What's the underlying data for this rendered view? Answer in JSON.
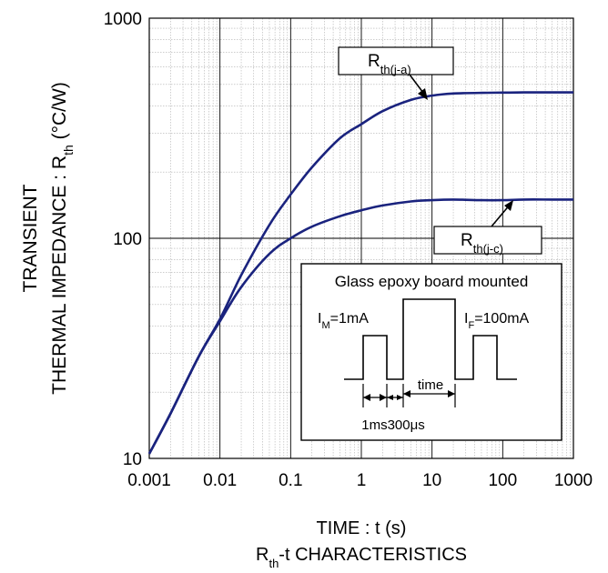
{
  "chart_data": {
    "type": "line",
    "x_scale": "log",
    "y_scale": "log",
    "xlim": [
      0.001,
      1000
    ],
    "ylim": [
      10,
      1000
    ],
    "grid": true,
    "x_ticks": [
      "0.001",
      "0.01",
      "0.1",
      "1",
      "10",
      "100",
      "1000"
    ],
    "y_ticks": [
      "10",
      "100",
      "1000"
    ],
    "xlabel": "TIME : t (s)",
    "ylabel_line1": "TRANSIENT",
    "ylabel_line2": {
      "main": "THERMAL IMPEDANCE : R",
      "sub": "th",
      "tail": " (°C/W)"
    },
    "caption": {
      "main": "R",
      "sub": "th",
      "tail": "-t CHARACTERISTICS"
    },
    "series": [
      {
        "name": {
          "main": "R",
          "sub": "th(j-a)"
        },
        "x": [
          0.001,
          0.002,
          0.005,
          0.01,
          0.02,
          0.05,
          0.1,
          0.2,
          0.5,
          1,
          2,
          5,
          10,
          20,
          50,
          100,
          200,
          500,
          1000
        ],
        "y": [
          10.5,
          16,
          29,
          43,
          68,
          115,
          158,
          210,
          285,
          330,
          378,
          425,
          445,
          455,
          458,
          459,
          460,
          460,
          460
        ]
      },
      {
        "name": {
          "main": "R",
          "sub": "th(j-c)"
        },
        "x": [
          0.001,
          0.002,
          0.005,
          0.01,
          0.02,
          0.05,
          0.1,
          0.2,
          0.5,
          1,
          2,
          5,
          10,
          20,
          50,
          100,
          200,
          500,
          1000
        ],
        "y": [
          10.5,
          16,
          29,
          42,
          60,
          85,
          100,
          113,
          126,
          134,
          141,
          147,
          149,
          150,
          149,
          149,
          150,
          150,
          150
        ]
      }
    ],
    "inset": {
      "title": "Glass epoxy board mounted",
      "im_label": {
        "main": "I",
        "sub": "M",
        "tail": "=1mA"
      },
      "if_label": {
        "main": "I",
        "sub": "F",
        "tail": "=100mA"
      },
      "time_label": "time",
      "dims_label": "1ms300μs"
    },
    "colors": {
      "curve": "#1a237e",
      "grid_major": "#000000",
      "grid_minor": "#b0b0b0"
    }
  }
}
